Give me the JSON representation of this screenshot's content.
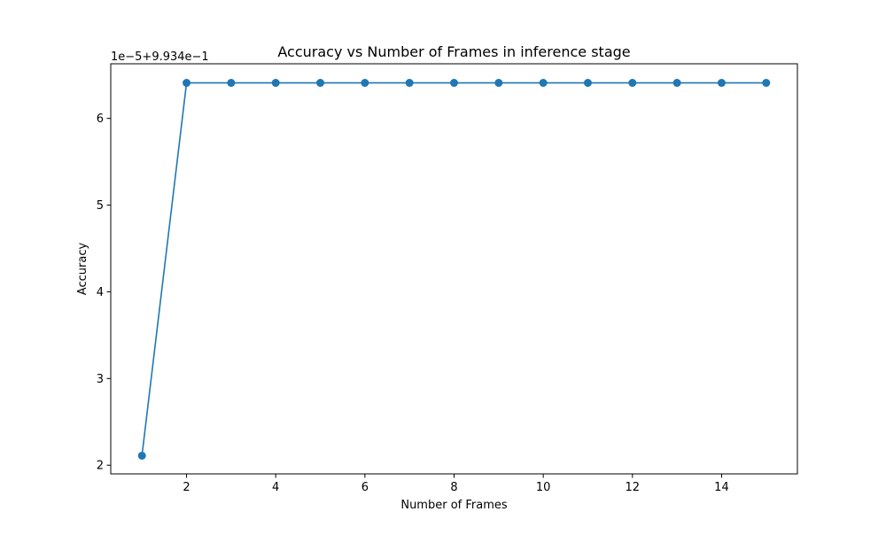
{
  "chart_data": {
    "type": "line",
    "title": "Accuracy vs Number of Frames in inference stage",
    "xlabel": "Number of Frames",
    "ylabel": "Accuracy",
    "y_offset_text": "1e−5+9.934e−1",
    "x_ticks": [
      "2",
      "4",
      "6",
      "8",
      "10",
      "12",
      "14"
    ],
    "y_ticks": [
      "2",
      "3",
      "4",
      "5",
      "6"
    ],
    "xlim": [
      0.3,
      15.7
    ],
    "ylim": [
      1.9,
      6.63
    ],
    "grid": false,
    "legend": "none",
    "series": [
      {
        "x": [
          1,
          2,
          3,
          4,
          5,
          6,
          7,
          8,
          9,
          10,
          11,
          12,
          13,
          14,
          15
        ],
        "y": [
          2.11,
          6.41,
          6.41,
          6.41,
          6.41,
          6.41,
          6.41,
          6.41,
          6.41,
          6.41,
          6.41,
          6.41,
          6.41,
          6.41,
          6.41
        ]
      }
    ],
    "colors": {
      "line": "#1f77b4",
      "marker": "#1f77b4",
      "axes": "#000000"
    }
  }
}
